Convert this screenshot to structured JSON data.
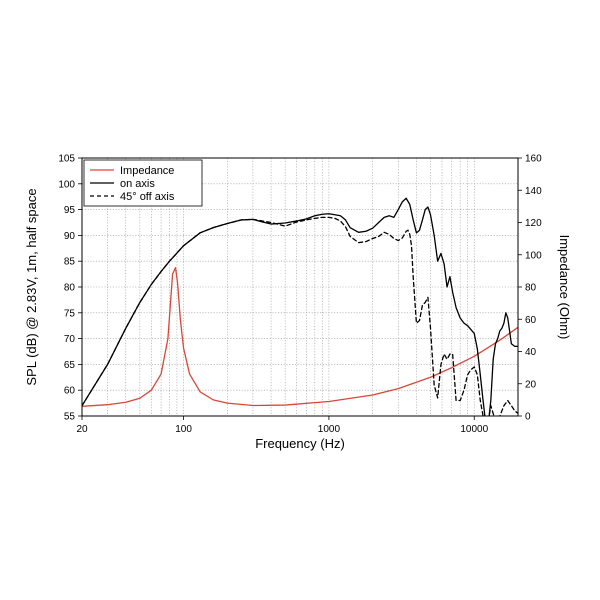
{
  "chart_data": {
    "type": "line",
    "xlabel": "Frequency (Hz)",
    "ylabel_left": "SPL (dB) @ 2.83V, 1m, half space",
    "ylabel_right": "Impedance (Ohm)",
    "x_scale": "log",
    "xlim": [
      20,
      20000
    ],
    "ylim_left": [
      55,
      105
    ],
    "ylim_right": [
      0,
      160
    ],
    "x_tick_labels": [
      "20",
      "100",
      "1000",
      "10000"
    ],
    "y_left_tick_labels": [
      "55",
      "60",
      "65",
      "70",
      "75",
      "80",
      "85",
      "90",
      "95",
      "100",
      "105"
    ],
    "y_right_tick_labels": [
      "0",
      "20",
      "40",
      "60",
      "80",
      "100",
      "120",
      "140",
      "160"
    ],
    "grid": true,
    "legend_position": "top-left",
    "legend": [
      "Impedance",
      "on axis",
      "45° off axis"
    ],
    "colors": {
      "impedance": "#d9463a",
      "on_axis": "#000000",
      "off_axis": "#000000"
    },
    "series": [
      {
        "name": "Impedance",
        "axis": "right",
        "style": "solid",
        "x": [
          20,
          30,
          40,
          50,
          60,
          70,
          78,
          84,
          88,
          91,
          95,
          100,
          110,
          130,
          160,
          200,
          300,
          500,
          1000,
          2000,
          3000,
          5000,
          7000,
          10000,
          15000,
          20000
        ],
        "y": [
          6,
          7,
          8.5,
          11,
          16,
          26,
          48,
          88,
          92,
          82,
          60,
          42,
          26,
          15,
          10,
          8,
          6.5,
          6.8,
          9,
          13,
          17,
          24,
          30,
          37,
          47,
          55
        ]
      },
      {
        "name": "on axis",
        "axis": "left",
        "style": "solid",
        "x": [
          20,
          30,
          40,
          50,
          60,
          70,
          80,
          100,
          130,
          160,
          200,
          250,
          300,
          350,
          400,
          500,
          600,
          700,
          800,
          900,
          1000,
          1100,
          1200,
          1300,
          1400,
          1600,
          1800,
          2000,
          2200,
          2400,
          2600,
          2800,
          3000,
          3200,
          3400,
          3600,
          3800,
          4000,
          4200,
          4400,
          4600,
          4800,
          5000,
          5300,
          5600,
          5900,
          6200,
          6500,
          6800,
          7100,
          7500,
          8000,
          8500,
          9000,
          10000,
          10500,
          11000,
          11500,
          12000,
          12500,
          13000,
          13500,
          14000,
          14500,
          15000,
          15500,
          16000,
          16500,
          17000,
          17500,
          18000,
          19000,
          20000
        ],
        "y": [
          57,
          65,
          72,
          77,
          80.5,
          83,
          85,
          88,
          90.5,
          91.5,
          92.3,
          93,
          93.1,
          92.6,
          92.2,
          92.4,
          92.8,
          93.2,
          93.8,
          94.1,
          94.2,
          94,
          93.8,
          93,
          91.5,
          90.6,
          90.8,
          91.4,
          92.5,
          93.5,
          93.8,
          93.5,
          95,
          96.5,
          97.2,
          96,
          93,
          90.5,
          91,
          93,
          95,
          95.5,
          94,
          90,
          85,
          86.5,
          84.5,
          80,
          82,
          79,
          76,
          74,
          73,
          72.5,
          71,
          68,
          63,
          58,
          53.5,
          53.5,
          58,
          66,
          69,
          70,
          71.5,
          72,
          73,
          75,
          74,
          71.5,
          69,
          68.5,
          68.5
        ]
      },
      {
        "name": "45° off axis",
        "axis": "left",
        "style": "dashed",
        "x": [
          20,
          30,
          40,
          50,
          60,
          70,
          80,
          100,
          130,
          160,
          200,
          250,
          300,
          400,
          500,
          600,
          700,
          800,
          900,
          1000,
          1100,
          1200,
          1300,
          1400,
          1600,
          1800,
          2000,
          2200,
          2400,
          2600,
          2800,
          3000,
          3200,
          3400,
          3500,
          3600,
          3700,
          3800,
          4000,
          4200,
          4400,
          4600,
          4800,
          5000,
          5300,
          5600,
          5900,
          6200,
          6500,
          6800,
          7100,
          7500,
          8000,
          8500,
          9000,
          9500,
          10000,
          10500,
          11000,
          11500,
          12000,
          12500,
          13000,
          14000,
          15000,
          16000,
          17000,
          18000,
          19000,
          20000
        ],
        "y": [
          57,
          65,
          72,
          77,
          80.5,
          83,
          85,
          88,
          90.5,
          91.5,
          92.3,
          93,
          93.1,
          92.5,
          91.8,
          92.6,
          93,
          93.3,
          93.5,
          93.5,
          93.3,
          92.8,
          91.7,
          89.8,
          88.6,
          88.8,
          89.4,
          89.8,
          90.6,
          90.2,
          89.4,
          89,
          89.5,
          90.8,
          91,
          90.2,
          88,
          82,
          73,
          73.5,
          76.5,
          77,
          78,
          72,
          61,
          58.5,
          65,
          67,
          66,
          67,
          67,
          58,
          58,
          60,
          63,
          64,
          64.5,
          63,
          58,
          55,
          53,
          54,
          57,
          54,
          55,
          57,
          58,
          57,
          56,
          55.5
        ]
      }
    ]
  }
}
